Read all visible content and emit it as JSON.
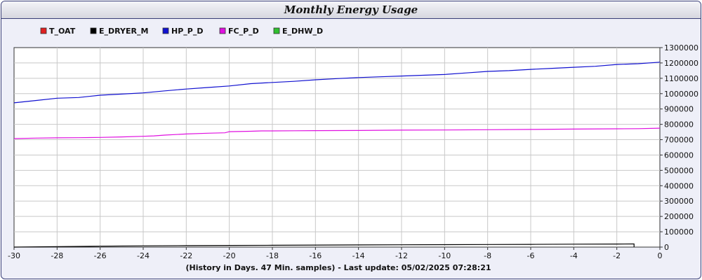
{
  "chart_data": {
    "type": "line",
    "title": "Monthly Energy Usage",
    "xlabel": "(History in Days. 47 Min. samples) - Last update: 05/02/2025 07:28:21",
    "ylabel": "",
    "xlim": [
      -30,
      0
    ],
    "ylim": [
      0,
      1300000
    ],
    "x_ticks": [
      -30,
      -28,
      -26,
      -24,
      -22,
      -20,
      -18,
      -16,
      -14,
      -12,
      -10,
      -8,
      -6,
      -4,
      -2,
      0
    ],
    "y_ticks": [
      0,
      100000,
      200000,
      300000,
      400000,
      500000,
      600000,
      700000,
      800000,
      900000,
      1000000,
      1100000,
      1200000,
      1300000
    ],
    "y_axis_side": "right",
    "grid": true,
    "legend_position": "top-left",
    "series": [
      {
        "name": "T_OAT",
        "color": "#e02020",
        "x": [],
        "values": []
      },
      {
        "name": "E_DRYER_M",
        "color": "#000000",
        "x": [
          -30,
          -28,
          -26,
          -24,
          -22,
          -20,
          -18,
          -16,
          -14,
          -12,
          -10,
          -8,
          -6,
          -4,
          -2,
          -1.2,
          -1.2
        ],
        "values": [
          0,
          3000,
          6000,
          8000,
          9500,
          11000,
          12000,
          13000,
          14000,
          15000,
          16000,
          17000,
          18000,
          19000,
          20000,
          20500,
          0
        ]
      },
      {
        "name": "HP_P_D",
        "color": "#1010d0",
        "x": [
          -30,
          -29,
          -28,
          -27,
          -26,
          -25,
          -24,
          -23,
          -22,
          -21,
          -20,
          -19,
          -18,
          -17,
          -16,
          -15,
          -14,
          -13,
          -12,
          -11,
          -10,
          -9,
          -8,
          -7,
          -6,
          -5,
          -4,
          -3,
          -2,
          -1,
          0
        ],
        "values": [
          940000,
          955000,
          970000,
          975000,
          990000,
          997000,
          1005000,
          1018000,
          1030000,
          1040000,
          1050000,
          1065000,
          1073000,
          1080000,
          1090000,
          1098000,
          1105000,
          1110000,
          1115000,
          1120000,
          1125000,
          1135000,
          1145000,
          1150000,
          1158000,
          1165000,
          1172000,
          1178000,
          1190000,
          1195000,
          1205000
        ]
      },
      {
        "name": "FC_P_D",
        "color": "#e010e0",
        "x": [
          -30,
          -29,
          -28,
          -27,
          -26,
          -25,
          -24,
          -23.5,
          -23,
          -22,
          -21,
          -20.2,
          -20,
          -19,
          -18.5,
          -18,
          -17,
          -16,
          -14,
          -12,
          -10,
          -8,
          -6,
          -4,
          -2,
          -1,
          0
        ],
        "values": [
          707000,
          710000,
          712000,
          713000,
          715000,
          718000,
          722000,
          725000,
          730000,
          737000,
          742000,
          745000,
          752000,
          755000,
          757000,
          757000,
          758000,
          759000,
          760000,
          762000,
          763000,
          765000,
          767000,
          769000,
          771000,
          772000,
          775000
        ]
      },
      {
        "name": "E_DHW_D",
        "color": "#30c030",
        "x": [],
        "values": []
      }
    ]
  }
}
